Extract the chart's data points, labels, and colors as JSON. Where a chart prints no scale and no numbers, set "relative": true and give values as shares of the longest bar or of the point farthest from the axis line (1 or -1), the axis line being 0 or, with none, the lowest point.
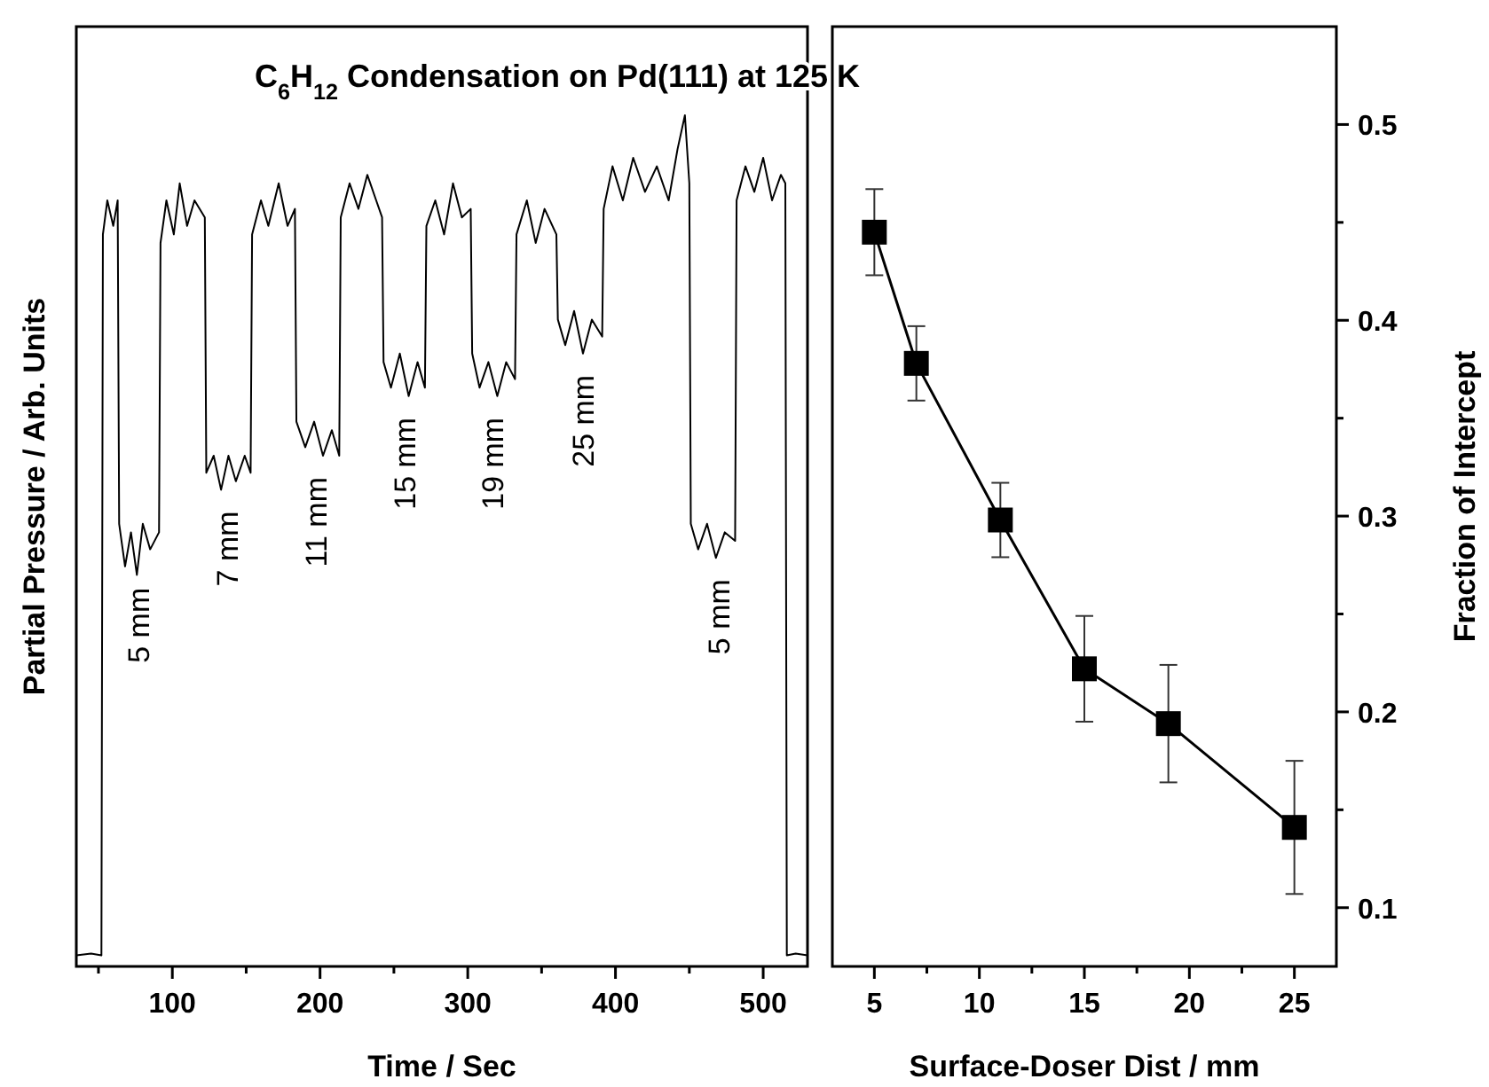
{
  "chart_data": [
    {
      "type": "line",
      "title": "C$_{6}$H$_{12}$ Condensation on Pd(111) at 125 K",
      "xlabel": "Time / Sec",
      "ylabel": "Partial Pressure / Arb. Units",
      "relative": true,
      "xlim": [
        35,
        530
      ],
      "xticks": [
        {
          "value": 50,
          "label": null
        },
        100,
        {
          "value": 150,
          "label": null
        },
        200,
        {
          "value": 250,
          "label": null
        },
        300,
        {
          "value": 350,
          "label": null
        },
        400,
        {
          "value": 450,
          "label": null
        },
        500
      ],
      "grid": false,
      "marker": "none",
      "line_style": "solid",
      "annotations": [
        {
          "text": "5 mm",
          "x": 77,
          "y": 0.47
        },
        {
          "text": "7 mm",
          "x": 137,
          "y": 0.56
        },
        {
          "text": "11 mm",
          "x": 197,
          "y": 0.6
        },
        {
          "text": "15 mm",
          "x": 257,
          "y": 0.67
        },
        {
          "text": "19 mm",
          "x": 317,
          "y": 0.67
        },
        {
          "text": "25 mm",
          "x": 378,
          "y": 0.72
        },
        {
          "text": "5 mm",
          "x": 470,
          "y": 0.48
        }
      ],
      "series": [
        {
          "color": "#000000",
          "x": [
            35,
            45,
            52,
            53,
            56,
            60,
            63,
            64,
            68,
            72,
            76,
            80,
            85,
            91,
            92,
            96,
            101,
            105,
            110,
            115,
            122,
            123,
            128,
            133,
            138,
            143,
            149,
            153,
            154,
            160,
            165,
            172,
            178,
            183,
            184,
            190,
            196,
            202,
            208,
            213,
            214,
            220,
            226,
            232,
            238,
            242,
            243,
            248,
            254,
            260,
            266,
            271,
            272,
            278,
            284,
            290,
            296,
            302,
            303,
            308,
            314,
            320,
            326,
            332,
            333,
            340,
            346,
            352,
            360,
            361,
            366,
            372,
            378,
            384,
            391,
            392,
            398,
            405,
            412,
            420,
            428,
            436,
            442,
            447,
            450,
            451,
            456,
            462,
            468,
            474,
            481,
            482,
            488,
            494,
            500,
            506,
            512,
            515,
            516,
            522,
            530
          ],
          "values": [
            0.013,
            0.015,
            0.013,
            0.86,
            0.9,
            0.87,
            0.9,
            0.52,
            0.47,
            0.51,
            0.46,
            0.52,
            0.49,
            0.51,
            0.85,
            0.9,
            0.86,
            0.92,
            0.87,
            0.9,
            0.88,
            0.58,
            0.6,
            0.56,
            0.6,
            0.57,
            0.6,
            0.58,
            0.86,
            0.9,
            0.87,
            0.92,
            0.87,
            0.89,
            0.64,
            0.61,
            0.64,
            0.6,
            0.63,
            0.6,
            0.88,
            0.92,
            0.89,
            0.93,
            0.9,
            0.88,
            0.71,
            0.68,
            0.72,
            0.67,
            0.71,
            0.68,
            0.87,
            0.9,
            0.86,
            0.92,
            0.88,
            0.89,
            0.72,
            0.68,
            0.71,
            0.67,
            0.71,
            0.69,
            0.86,
            0.9,
            0.85,
            0.89,
            0.86,
            0.76,
            0.73,
            0.77,
            0.72,
            0.76,
            0.74,
            0.89,
            0.94,
            0.9,
            0.95,
            0.91,
            0.94,
            0.9,
            0.96,
            1,
            0.92,
            0.52,
            0.49,
            0.52,
            0.48,
            0.51,
            0.5,
            0.9,
            0.94,
            0.91,
            0.95,
            0.9,
            0.93,
            0.92,
            0.013,
            0.015,
            0.013
          ]
        }
      ]
    },
    {
      "type": "line",
      "xlabel": "Surface-Doser Dist / mm",
      "y2label": "Fraction of Intercept",
      "xlim": [
        3,
        27
      ],
      "xticks": [
        5,
        {
          "value": 7.5,
          "label": null
        },
        10,
        {
          "value": 12.5,
          "label": null
        },
        15,
        {
          "value": 17.5,
          "label": null
        },
        20,
        {
          "value": 22.5,
          "label": null
        },
        25
      ],
      "y2lim": [
        0.07,
        0.55
      ],
      "y2ticks": [
        0.1,
        {
          "value": 0.15,
          "label": null
        },
        0.2,
        {
          "value": 0.25,
          "label": null
        },
        0.3,
        {
          "value": 0.35,
          "label": null
        },
        0.4,
        {
          "value": 0.45,
          "label": null
        },
        0.5
      ],
      "grid": false,
      "marker": "square",
      "line_style": "solid",
      "series": [
        {
          "color": "#000000",
          "axis": "y2",
          "x": [
            5,
            7,
            11,
            15,
            19,
            25
          ],
          "values": [
            0.445,
            0.378,
            0.298,
            0.222,
            0.194,
            0.141
          ],
          "errors": [
            0.022,
            0.019,
            0.019,
            0.027,
            0.03,
            0.034
          ]
        }
      ]
    }
  ]
}
